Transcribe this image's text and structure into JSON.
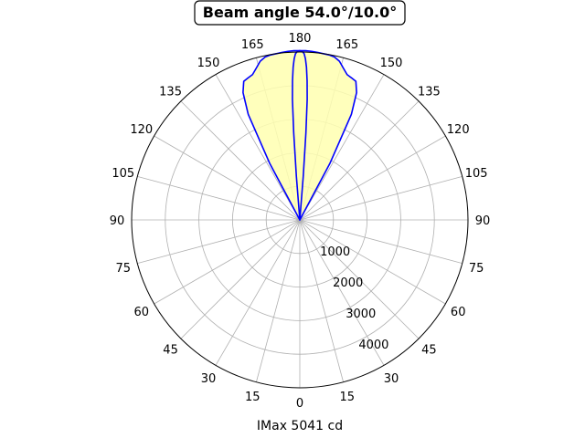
{
  "chart_data": {
    "type": "polar",
    "title": "Beam angle 54.0°/10.0°",
    "xlabel": "IMax 5041 cd",
    "angle_tick_labels": [
      "0",
      "15",
      "30",
      "45",
      "60",
      "75",
      "90",
      "105",
      "120",
      "135",
      "150",
      "165",
      "180",
      "165",
      "150",
      "135",
      "120",
      "105",
      "90",
      "75",
      "60",
      "45",
      "30",
      "15"
    ],
    "radial_ticks": [
      1000,
      2000,
      3000,
      4000
    ],
    "radial_tick_labels": [
      "1000",
      "2000",
      "3000",
      "4000"
    ],
    "rmax": 5000,
    "imax": 5041,
    "grid": true,
    "fill_color": "#ffffb0",
    "line_color": "#0000ff",
    "series": [
      {
        "plane": "wide",
        "beam_angle_deg": 54.0,
        "angles_deg": [
          -30,
          -28,
          -26,
          -24,
          -22,
          -20,
          -18,
          -16,
          -14,
          -12,
          -10,
          -8,
          -6,
          -4,
          -2,
          0,
          2,
          4,
          6,
          8,
          10,
          12,
          14,
          16,
          18,
          20,
          22,
          24,
          26,
          28,
          30
        ],
        "intensity_cd": [
          0,
          1900,
          3500,
          4150,
          4450,
          4500,
          4550,
          4700,
          4870,
          4960,
          4990,
          5000,
          5015,
          5030,
          5041,
          5041,
          5041,
          5030,
          5015,
          5000,
          4990,
          4960,
          4870,
          4700,
          4550,
          4500,
          4450,
          4150,
          3500,
          1900,
          0
        ]
      },
      {
        "plane": "narrow",
        "beam_angle_deg": 10.0,
        "angles_deg": [
          -5,
          -4.5,
          -4,
          -3.5,
          -3,
          -2.5,
          -2,
          -1.5,
          -1,
          -0.5,
          0,
          0.5,
          1,
          1.5,
          2,
          2.5,
          3,
          3.5,
          4,
          4.5,
          5
        ],
        "intensity_cd": [
          0,
          1300,
          2600,
          3600,
          4150,
          4550,
          4800,
          4950,
          5000,
          5030,
          5041,
          5030,
          5000,
          4950,
          4800,
          4550,
          4150,
          3600,
          2600,
          1300,
          0
        ]
      }
    ]
  }
}
